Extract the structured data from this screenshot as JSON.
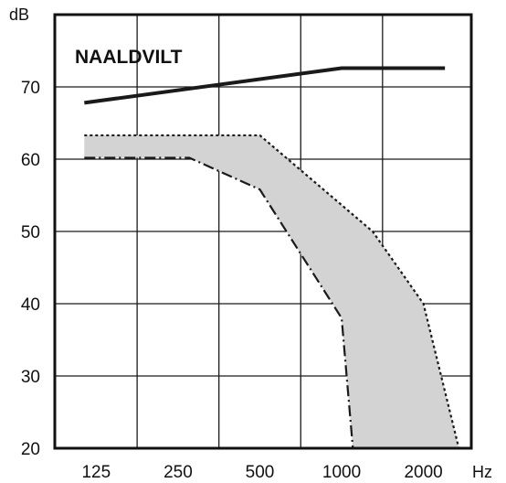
{
  "chart_data": {
    "type": "area",
    "title": "NAALDVILT",
    "ylabel": "dB",
    "xlabel": "Hz",
    "x_log_scale": true,
    "categories": [
      "125",
      "250",
      "500",
      "1000",
      "2000"
    ],
    "x_ticks": [
      125,
      250,
      500,
      1000,
      2000
    ],
    "y_ticks": [
      20,
      30,
      40,
      50,
      60,
      70
    ],
    "ylim": [
      20,
      80
    ],
    "xlim": [
      88,
      3000
    ],
    "grid": true,
    "legend": "none",
    "series": [
      {
        "style": "solid",
        "points": [
          [
            113,
            67.8
          ],
          [
            1000,
            72.6
          ],
          [
            2400,
            72.6
          ]
        ]
      },
      {
        "style": "dotted",
        "points": [
          [
            113,
            63.3
          ],
          [
            500,
            63.3
          ],
          [
            1300,
            50
          ],
          [
            2000,
            40
          ],
          [
            2700,
            20
          ]
        ]
      },
      {
        "style": "dash-dot",
        "points": [
          [
            113,
            60.2
          ],
          [
            275,
            60.2
          ],
          [
            500,
            55.8
          ],
          [
            1000,
            38
          ],
          [
            1100,
            20
          ]
        ]
      }
    ],
    "band_fill_color": "#d3d3d3",
    "line_color": "#1a1a1a"
  }
}
